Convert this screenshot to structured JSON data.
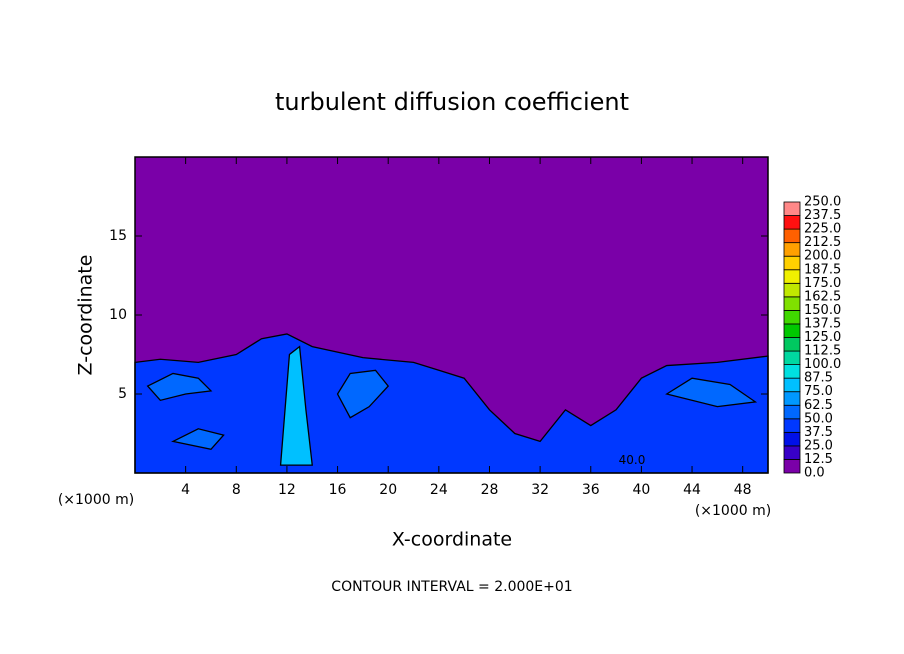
{
  "chart_data": {
    "type": "contour",
    "title": "turbulent diffusion coefficient",
    "x_label": "X-coordinate",
    "y_label": "Z-coordinate",
    "x_unit_left": "(×1000 m)",
    "x_unit_right": "(×1000 m)",
    "footnote": "CONTOUR INTERVAL = 2.000E+01",
    "xlim": [
      0,
      50
    ],
    "ylim": [
      0,
      20
    ],
    "xticks": [
      4,
      8,
      12,
      16,
      20,
      24,
      28,
      32,
      36,
      40,
      44,
      48
    ],
    "yticks": [
      5,
      10,
      15
    ],
    "colorbar": {
      "levels": [
        {
          "value": 0,
          "label": "0.0"
        },
        12.5,
        {
          "value": 25,
          "label": "25.0"
        },
        37.5,
        {
          "value": 50,
          "label": "50.0"
        },
        62.5,
        {
          "value": 75,
          "label": "75.0"
        },
        87.5,
        {
          "value": 100,
          "label": "100.0"
        },
        112.5,
        {
          "value": 125,
          "label": "125.0"
        },
        137.5,
        {
          "value": 150,
          "label": "150.0"
        },
        162.5,
        {
          "value": 175,
          "label": "175.0"
        },
        187.5,
        {
          "value": 200,
          "label": "200.0"
        },
        212.5,
        {
          "value": 225,
          "label": "225.0"
        },
        237.5,
        {
          "value": 250,
          "label": "250.0"
        }
      ],
      "colors": [
        "#7a00a8",
        "#3800c8",
        "#0010e8",
        "#0038ff",
        "#0068ff",
        "#0098ff",
        "#00c0ff",
        "#00e0e0",
        "#00d8a0",
        "#00c860",
        "#00c800",
        "#40d800",
        "#80e000",
        "#c0e800",
        "#f0f000",
        "#ffd000",
        "#ffa000",
        "#ff6000",
        "#ff1010",
        "#ff8888"
      ]
    },
    "regions": [
      {
        "value": 0,
        "points": [
          [
            0,
            0
          ],
          [
            0,
            20
          ],
          [
            50,
            20
          ],
          [
            50,
            0
          ]
        ]
      },
      {
        "value": 37.5,
        "points": [
          [
            0,
            0
          ],
          [
            0,
            7
          ],
          [
            2,
            7.2
          ],
          [
            5,
            7
          ],
          [
            8,
            7.5
          ],
          [
            10,
            8.5
          ],
          [
            12,
            8.8
          ],
          [
            14,
            8
          ],
          [
            18,
            7.3
          ],
          [
            22,
            7
          ],
          [
            24,
            6.5
          ],
          [
            26,
            6
          ],
          [
            28,
            4
          ],
          [
            30,
            2.5
          ],
          [
            32,
            2
          ],
          [
            34,
            4
          ],
          [
            36,
            3
          ],
          [
            38,
            4
          ],
          [
            40,
            6
          ],
          [
            42,
            6.8
          ],
          [
            46,
            7
          ],
          [
            50,
            7.4
          ],
          [
            50,
            0
          ]
        ]
      },
      {
        "value": 50,
        "points": [
          [
            1,
            5.5
          ],
          [
            3,
            6.3
          ],
          [
            5,
            6
          ],
          [
            6,
            5.2
          ],
          [
            4,
            5
          ],
          [
            2,
            4.6
          ]
        ]
      },
      {
        "value": 50,
        "points": [
          [
            16,
            5
          ],
          [
            17,
            6.3
          ],
          [
            19,
            6.5
          ],
          [
            20,
            5.5
          ],
          [
            18.5,
            4.2
          ],
          [
            17,
            3.5
          ]
        ]
      },
      {
        "value": 50,
        "points": [
          [
            42,
            5
          ],
          [
            44,
            6
          ],
          [
            47,
            5.6
          ],
          [
            49,
            4.5
          ],
          [
            46,
            4.2
          ]
        ]
      },
      {
        "value": 50,
        "points": [
          [
            3,
            2
          ],
          [
            5,
            2.8
          ],
          [
            7,
            2.4
          ],
          [
            6,
            1.5
          ]
        ]
      },
      {
        "value": 75,
        "points": [
          [
            11.5,
            0.5
          ],
          [
            12.2,
            7.5
          ],
          [
            13,
            8
          ],
          [
            13.5,
            4
          ],
          [
            14,
            0.5
          ]
        ]
      }
    ],
    "contour_labels": [
      {
        "value": 40,
        "label": "40.0",
        "x": 38.2,
        "y": 0.8
      }
    ]
  }
}
